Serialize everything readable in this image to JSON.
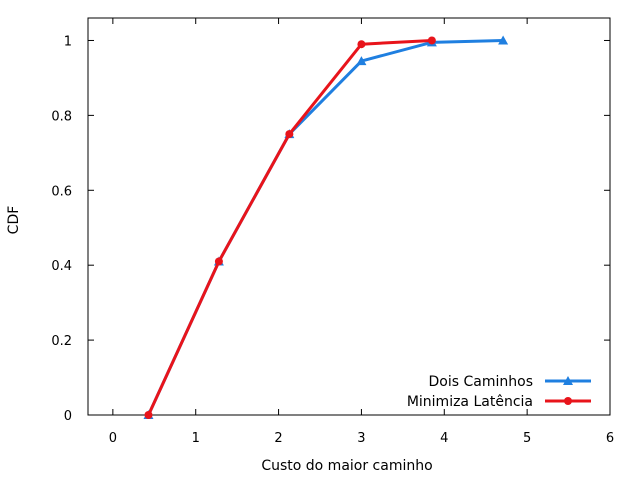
{
  "chart_data": {
    "type": "line",
    "xlabel": "Custo do maior caminho",
    "ylabel": "CDF",
    "xlim": [
      -0.3,
      6
    ],
    "ylim": [
      0,
      1.06
    ],
    "x_ticks": [
      0,
      1,
      2,
      3,
      4,
      5,
      6
    ],
    "y_ticks": [
      0,
      0.2,
      0.4,
      0.6,
      0.8,
      1
    ],
    "x_tick_labels": [
      "0",
      "1",
      "2",
      "3",
      "4",
      "5",
      "6"
    ],
    "y_tick_labels": [
      "0",
      "0.2",
      "0.4",
      "0.6",
      "0.8",
      "1"
    ],
    "grid": false,
    "legend_position": "bottom-right",
    "series": [
      {
        "name": "Dois Caminhos",
        "color": "#1f7fe0",
        "marker": "triangle",
        "x": [
          0.43,
          1.28,
          2.13,
          3.0,
          3.85,
          4.71
        ],
        "y": [
          0.0,
          0.41,
          0.75,
          0.945,
          0.995,
          1.0
        ]
      },
      {
        "name": "Minimiza Latência",
        "color": "#e8141b",
        "marker": "circle",
        "x": [
          0.43,
          1.28,
          2.13,
          3.0,
          3.85
        ],
        "y": [
          0.0,
          0.41,
          0.75,
          0.99,
          1.0
        ]
      }
    ]
  }
}
